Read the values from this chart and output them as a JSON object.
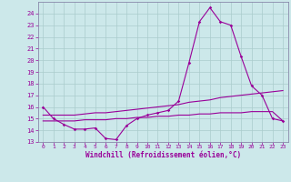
{
  "xlabel": "Windchill (Refroidissement éolien,°C)",
  "bg_color": "#cce8ea",
  "grid_color": "#aacccc",
  "line_color": "#990099",
  "spine_color": "#8888aa",
  "x_ticks": [
    0,
    1,
    2,
    3,
    4,
    5,
    6,
    7,
    8,
    9,
    10,
    11,
    12,
    13,
    14,
    15,
    16,
    17,
    18,
    19,
    20,
    21,
    22,
    23
  ],
  "y_ticks": [
    13,
    14,
    15,
    16,
    17,
    18,
    19,
    20,
    21,
    22,
    23,
    24
  ],
  "xlim": [
    -0.5,
    23.5
  ],
  "ylim": [
    13,
    25
  ],
  "line1_x": [
    0,
    1,
    2,
    3,
    4,
    5,
    6,
    7,
    8,
    9,
    10,
    11,
    12,
    13,
    14,
    15,
    16,
    17,
    18,
    19,
    20,
    21,
    22,
    23
  ],
  "line1_y": [
    16.0,
    15.0,
    14.5,
    14.1,
    14.1,
    14.2,
    13.3,
    13.2,
    14.4,
    15.0,
    15.3,
    15.5,
    15.7,
    16.5,
    19.8,
    23.3,
    24.5,
    23.3,
    23.0,
    20.3,
    17.8,
    17.0,
    15.0,
    14.8
  ],
  "line2_x": [
    0,
    1,
    2,
    3,
    4,
    5,
    6,
    7,
    8,
    9,
    10,
    11,
    12,
    13,
    14,
    15,
    16,
    17,
    18,
    19,
    20,
    21,
    22,
    23
  ],
  "line2_y": [
    15.3,
    15.3,
    15.3,
    15.3,
    15.4,
    15.5,
    15.5,
    15.6,
    15.7,
    15.8,
    15.9,
    16.0,
    16.1,
    16.2,
    16.4,
    16.5,
    16.6,
    16.8,
    16.9,
    17.0,
    17.1,
    17.2,
    17.3,
    17.4
  ],
  "line3_x": [
    0,
    1,
    2,
    3,
    4,
    5,
    6,
    7,
    8,
    9,
    10,
    11,
    12,
    13,
    14,
    15,
    16,
    17,
    18,
    19,
    20,
    21,
    22,
    23
  ],
  "line3_y": [
    14.8,
    14.8,
    14.8,
    14.8,
    14.9,
    14.9,
    14.9,
    15.0,
    15.0,
    15.1,
    15.1,
    15.2,
    15.2,
    15.3,
    15.3,
    15.4,
    15.4,
    15.5,
    15.5,
    15.5,
    15.6,
    15.6,
    15.6,
    14.8
  ]
}
